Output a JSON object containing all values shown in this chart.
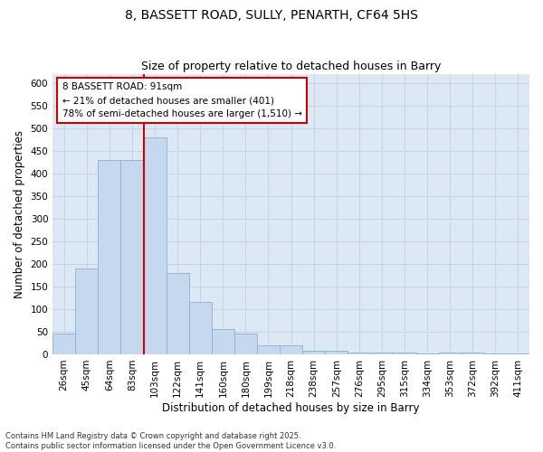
{
  "title1": "8, BASSETT ROAD, SULLY, PENARTH, CF64 5HS",
  "title2": "Size of property relative to detached houses in Barry",
  "xlabel": "Distribution of detached houses by size in Barry",
  "ylabel": "Number of detached properties",
  "bar_color": "#c5d8ee",
  "bar_edge_color": "#8aafd4",
  "background_color": "#dce9f5",
  "vline_color": "#cc0000",
  "categories": [
    "26sqm",
    "45sqm",
    "64sqm",
    "83sqm",
    "103sqm",
    "122sqm",
    "141sqm",
    "160sqm",
    "180sqm",
    "199sqm",
    "218sqm",
    "238sqm",
    "257sqm",
    "276sqm",
    "295sqm",
    "315sqm",
    "334sqm",
    "353sqm",
    "372sqm",
    "392sqm",
    "411sqm"
  ],
  "values": [
    45,
    190,
    430,
    430,
    480,
    180,
    115,
    55,
    45,
    20,
    20,
    8,
    8,
    3,
    3,
    3,
    1,
    3,
    3,
    1,
    1
  ],
  "ylim": [
    0,
    620
  ],
  "vline_x_index": 4,
  "annotation_text": "8 BASSETT ROAD: 91sqm\n← 21% of detached houses are smaller (401)\n78% of semi-detached houses are larger (1,510) →",
  "footer_text": "Contains HM Land Registry data © Crown copyright and database right 2025.\nContains public sector information licensed under the Open Government Licence v3.0.",
  "grid_color": "#c5d5e8",
  "title_fontsize": 10,
  "subtitle_fontsize": 9,
  "axis_label_fontsize": 8.5,
  "tick_fontsize": 7.5,
  "annotation_fontsize": 7.5,
  "footer_fontsize": 6
}
